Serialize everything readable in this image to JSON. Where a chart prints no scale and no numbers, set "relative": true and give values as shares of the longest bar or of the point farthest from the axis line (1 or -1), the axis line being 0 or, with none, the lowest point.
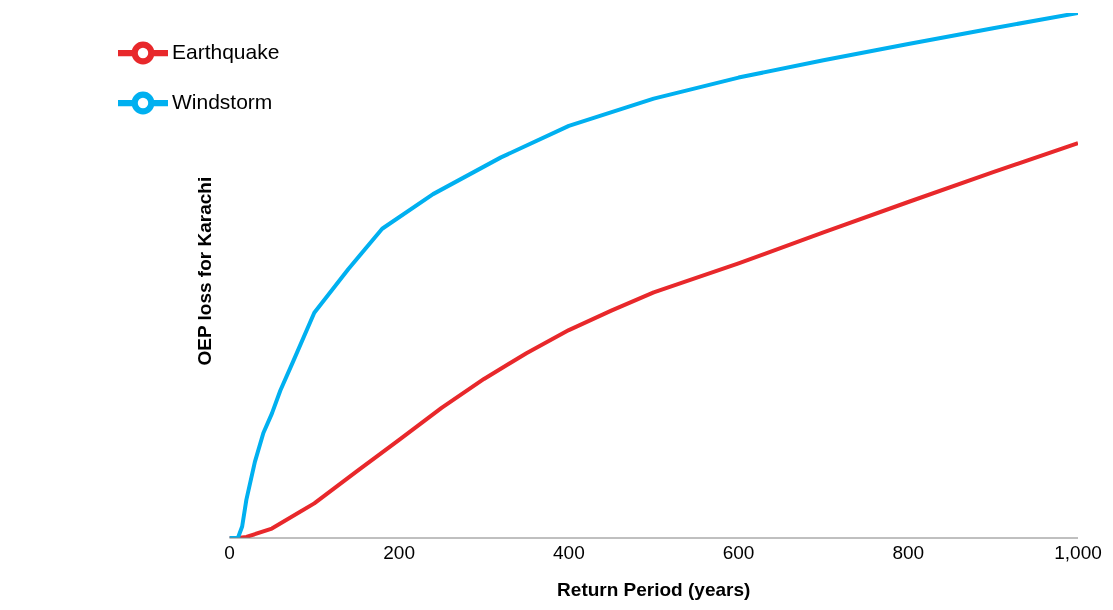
{
  "chart_data": {
    "type": "line",
    "xlabel": "Return Period (years)",
    "ylabel": "OEP loss for Karachi",
    "relative": true,
    "xlim": [
      0,
      1000
    ],
    "xticks": [
      0,
      200,
      400,
      600,
      800,
      {
        "value": 1000,
        "label": "1,000"
      }
    ],
    "legend": "top left",
    "marker": "none",
    "line_style": "solid",
    "series": [
      {
        "name": "Earthquake",
        "color": "#e8282b",
        "x": [
          0,
          10,
          20,
          50,
          100,
          150,
          200,
          250,
          300,
          350,
          400,
          450,
          500,
          600,
          700,
          800,
          900,
          1000
        ],
        "values": [
          0,
          0,
          0.002,
          0.018,
          0.066,
          0.127,
          0.187,
          0.248,
          0.303,
          0.352,
          0.396,
          0.433,
          0.468,
          0.523,
          0.582,
          0.64,
          0.697,
          0.752
        ]
      },
      {
        "name": "Windstorm",
        "color": "#00b0f0",
        "x": [
          0,
          10,
          15,
          20,
          30,
          40,
          50,
          60,
          75,
          100,
          140,
          180,
          240,
          320,
          400,
          500,
          600,
          700,
          800,
          900,
          1000
        ],
        "values": [
          0,
          0,
          0.022,
          0.073,
          0.145,
          0.2,
          0.237,
          0.281,
          0.336,
          0.429,
          0.512,
          0.589,
          0.655,
          0.725,
          0.785,
          0.837,
          0.877,
          0.91,
          0.941,
          0.971,
          1
        ]
      }
    ]
  }
}
